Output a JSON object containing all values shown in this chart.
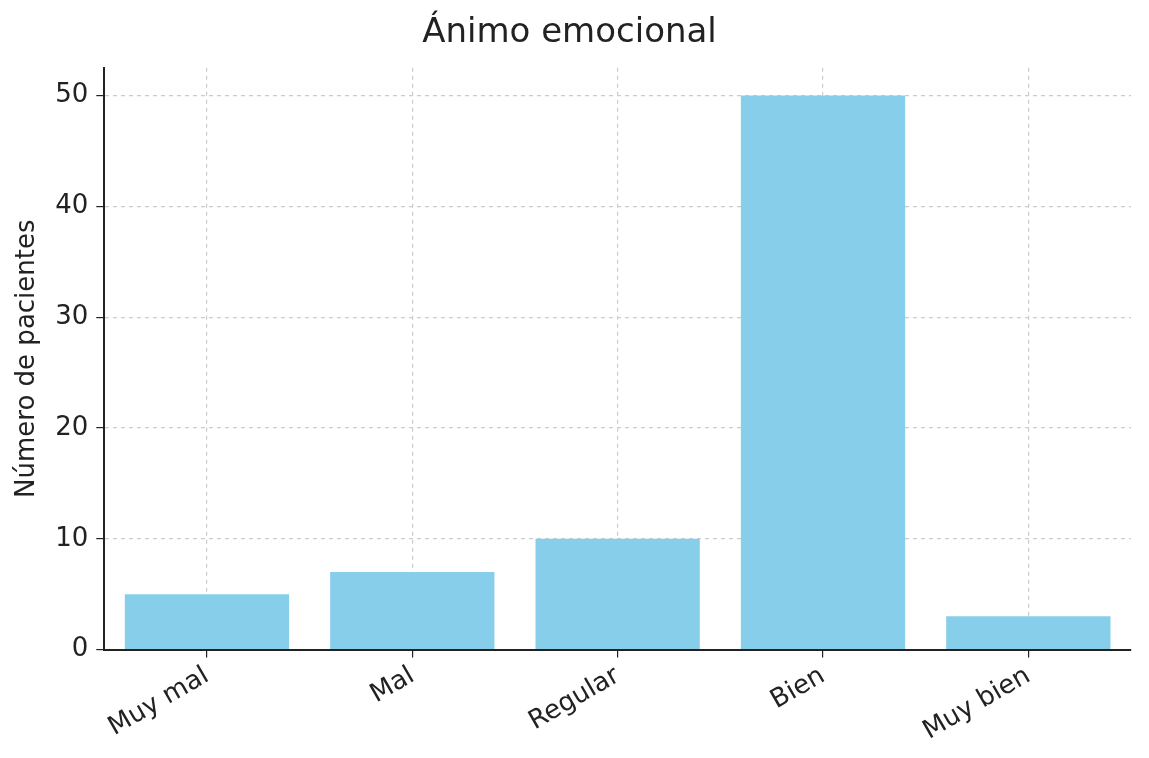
{
  "chart_data": {
    "type": "bar",
    "title": "Ánimo emocional",
    "ylabel": "Número de pacientes",
    "categories": [
      "Muy mal",
      "Mal",
      "Regular",
      "Bien",
      "Muy bien"
    ],
    "values": [
      5,
      7,
      10,
      50,
      3
    ],
    "color": "#87ceeb",
    "ylim": [
      0,
      52.5
    ],
    "yticks": [
      0,
      10,
      20,
      30,
      40,
      50
    ],
    "grid": true
  }
}
